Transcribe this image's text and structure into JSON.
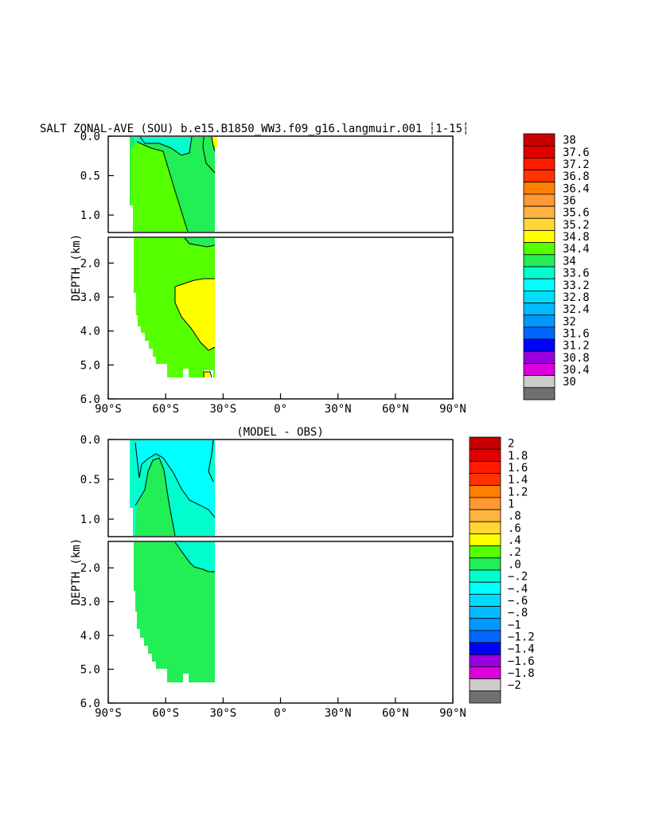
{
  "chart_data": [
    {
      "type": "contour",
      "title": "SALT ZONAL-AVE (SOU) b.e15.B1850_WW3.f09_g16.langmuir.001 ┆1-15┆",
      "ylabel": "DEPTH (km)",
      "xlabel": "",
      "x_ticks": [
        "90°S",
        "60°S",
        "30°S",
        "0°",
        "30°N",
        "60°N",
        "90°N"
      ],
      "x_tick_values": [
        -90,
        -60,
        -30,
        0,
        30,
        60,
        90
      ],
      "y_ticks_upper": [
        "0.0",
        "0.5",
        "1.0"
      ],
      "y_ticks_lower": [
        "2.0",
        "3.0",
        "4.0",
        "5.0",
        "6.0"
      ],
      "upper_range_km": [
        0,
        1.1
      ],
      "lower_range_km": [
        1.1,
        6.0
      ],
      "colorbar_levels": [
        "38",
        "37.6",
        "37.2",
        "36.8",
        "36.4",
        "36",
        "35.6",
        "35.2",
        "34.8",
        "34.4",
        "34",
        "33.6",
        "33.2",
        "32.8",
        "32.4",
        "32",
        "31.6",
        "31.2",
        "30.8",
        "30.4",
        "30"
      ],
      "colorbar_colors": [
        "#c80000",
        "#e00000",
        "#ff1a00",
        "#ff3300",
        "#ff8000",
        "#ff9933",
        "#ffb340",
        "#ffd633",
        "#ffff00",
        "#55ff00",
        "#22ee55",
        "#00ffcc",
        "#00ffff",
        "#00ddff",
        "#00bbff",
        "#0099ff",
        "#0066ff",
        "#0000ff",
        "#9900dd",
        "#dd00dd",
        "#cccccc",
        "#707070"
      ]
    },
    {
      "type": "contour",
      "title": "(MODEL - OBS)",
      "ylabel": "DEPTH (km)",
      "xlabel": "",
      "x_ticks": [
        "90°S",
        "60°S",
        "30°S",
        "0°",
        "30°N",
        "60°N",
        "90°N"
      ],
      "x_tick_values": [
        -90,
        -60,
        -30,
        0,
        30,
        60,
        90
      ],
      "y_ticks_upper": [
        "0.0",
        "0.5",
        "1.0"
      ],
      "y_ticks_lower": [
        "2.0",
        "3.0",
        "4.0",
        "5.0",
        "6.0"
      ],
      "upper_range_km": [
        0,
        1.1
      ],
      "lower_range_km": [
        1.1,
        6.0
      ],
      "colorbar_levels": [
        "2",
        "1.8",
        "1.6",
        "1.4",
        "1.2",
        "1",
        ".8",
        ".6",
        ".4",
        ".2",
        ".0",
        "−.2",
        "−.4",
        "−.6",
        "−.8",
        "−1",
        "−1.2",
        "−1.4",
        "−1.6",
        "−1.8",
        "−2"
      ],
      "colorbar_colors": [
        "#c80000",
        "#e00000",
        "#ff1a00",
        "#ff3300",
        "#ff8000",
        "#ff9933",
        "#ffb340",
        "#ffd633",
        "#ffff00",
        "#55ff00",
        "#22ee55",
        "#00ffcc",
        "#00ffff",
        "#00ddff",
        "#00bbff",
        "#0099ff",
        "#0066ff",
        "#0000ff",
        "#9900dd",
        "#dd00dd",
        "#cccccc",
        "#707070"
      ]
    }
  ]
}
